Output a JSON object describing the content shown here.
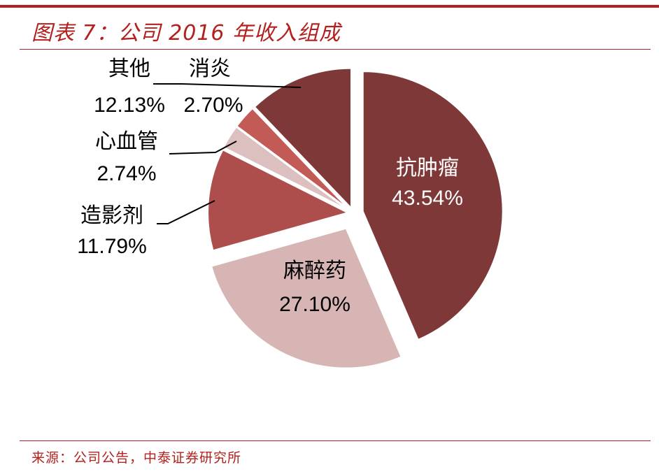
{
  "header": {
    "title": "图表 7：公司 2016 年收入组成"
  },
  "footer": {
    "source": "来源：公司公告，中泰证券研究所"
  },
  "chart_data": {
    "type": "pie",
    "title": "",
    "slices": [
      {
        "name": "抗肿瘤",
        "value": 43.54,
        "label": "43.54%",
        "color": "#7f3838"
      },
      {
        "name": "麻醉药",
        "value": 27.1,
        "label": "27.10%",
        "color": "#d8b5b5"
      },
      {
        "name": "造影剂",
        "value": 11.79,
        "label": "11.79%",
        "color": "#ad4e4c"
      },
      {
        "name": "心血管",
        "value": 2.74,
        "label": "2.74%",
        "color": "#dcc0bf"
      },
      {
        "name": "消炎",
        "value": 2.7,
        "label": "2.70%",
        "color": "#c25a56"
      },
      {
        "name": "其他",
        "value": 12.13,
        "label": "12.13%",
        "color": "#7f3838"
      }
    ]
  }
}
